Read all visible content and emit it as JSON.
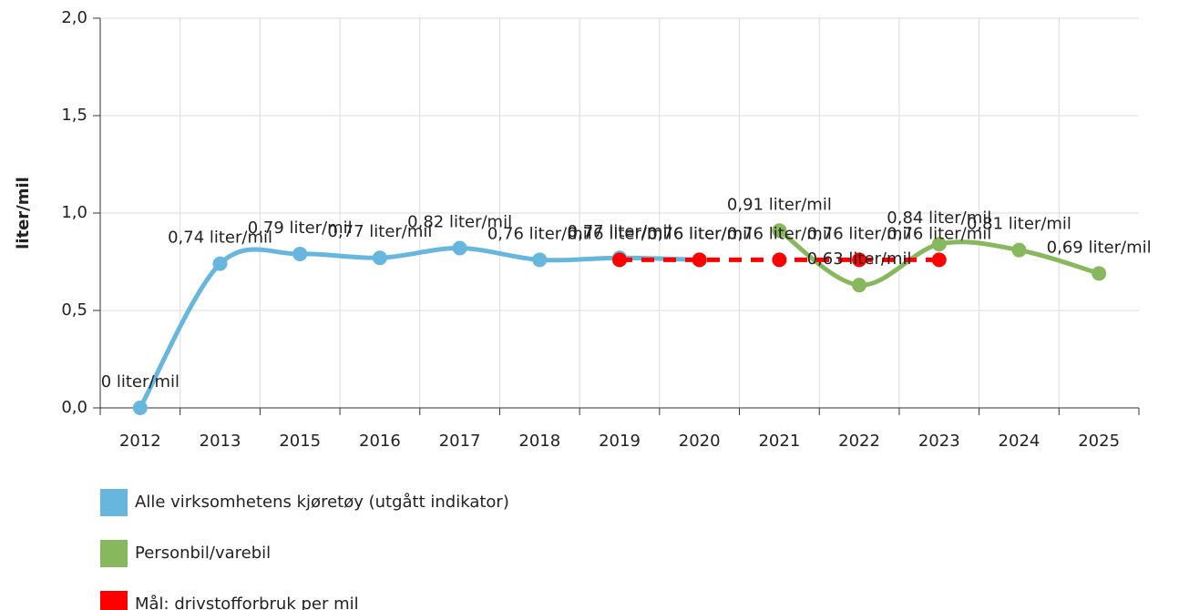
{
  "chart_data": {
    "type": "line",
    "y_label": "liter/mil",
    "categories": [
      "2012",
      "2013",
      "2015",
      "2016",
      "2017",
      "2018",
      "2019",
      "2020",
      "2021",
      "2022",
      "2023",
      "2024",
      "2025"
    ],
    "ylim": [
      0,
      2
    ],
    "yticks": [
      {
        "value": 0,
        "label": "0,0"
      },
      {
        "value": 0.5,
        "label": "0,5"
      },
      {
        "value": 1,
        "label": "1,0"
      },
      {
        "value": 1.5,
        "label": "1,5"
      },
      {
        "value": 2,
        "label": "2,0"
      }
    ],
    "grid": true,
    "legend": "bottom",
    "series": [
      {
        "name": "Alle virksomhetens kjøretøy (utgått indikator)",
        "color": "#66b6dd",
        "smooth": true,
        "dashed": false,
        "values": [
          0,
          0.74,
          0.79,
          0.77,
          0.82,
          0.76,
          0.77,
          0.76,
          null,
          null,
          null,
          null,
          null
        ],
        "value_labels": [
          "0 liter/mil",
          "0,74 liter/mil",
          "0,79 liter/mil",
          "0,77 liter/mil",
          "0,82 liter/mil",
          "0,76 liter/mil",
          "0,77 liter/mil",
          "0,76 liter/mil",
          null,
          null,
          null,
          null,
          null
        ]
      },
      {
        "name": "Personbil/varebil",
        "color": "#88b85e",
        "smooth": true,
        "dashed": false,
        "values": [
          null,
          null,
          null,
          null,
          null,
          null,
          null,
          null,
          0.91,
          0.63,
          0.84,
          0.81,
          0.69
        ],
        "value_labels": [
          null,
          null,
          null,
          null,
          null,
          null,
          null,
          null,
          "0,91 liter/mil",
          "0,63 liter/mil",
          "0,84 liter/mil",
          "0,81 liter/mil",
          "0,69 liter/mil"
        ]
      },
      {
        "name": "Mål: drivstofforbruk per mil",
        "color": "#ff0000",
        "smooth": false,
        "dashed": true,
        "values": [
          null,
          null,
          null,
          null,
          null,
          null,
          0.76,
          0.76,
          0.76,
          0.76,
          0.76,
          null,
          null
        ],
        "value_labels": [
          null,
          null,
          null,
          null,
          null,
          null,
          "0,76 liter/mil",
          "0,76 liter/mil",
          "0,76 liter/mil",
          "0,76 liter/mil",
          "0,76 liter/mil",
          null,
          null
        ]
      }
    ]
  }
}
